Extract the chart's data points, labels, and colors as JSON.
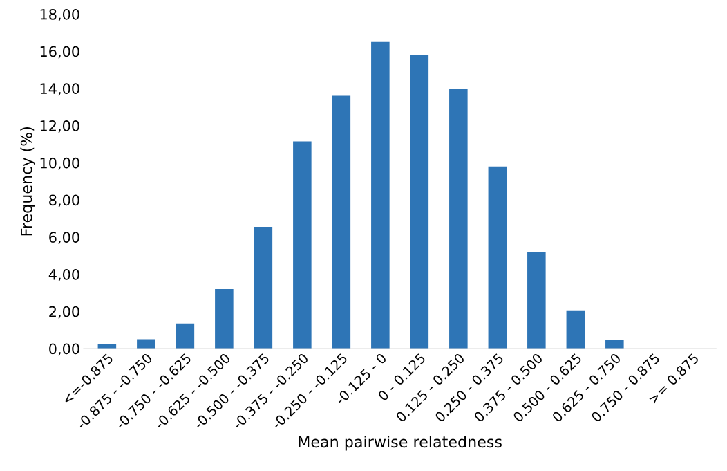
{
  "chart_data": {
    "type": "bar",
    "xlabel": "Mean pairwise relatedness",
    "ylabel": "Frequency (%)",
    "categories": [
      "<=-0.875",
      "-0.875 - -0.750",
      "-0.750 - -0.625",
      "-0.625 - -0.500",
      "-0.500 - -0.375",
      "-0.375 - -0.250",
      "-0.250 - -0.125",
      "-0.125 - 0",
      "0 - 0.125",
      "0.125 - 0.250",
      "0.250 - 0.375",
      "0.375 - 0.500",
      "0.500 - 0.625",
      "0.625 - 0.750",
      "0.750 - 0.875",
      ">= 0.875"
    ],
    "values": [
      0.25,
      0.5,
      1.35,
      3.2,
      6.55,
      11.15,
      13.6,
      16.5,
      15.8,
      14.0,
      9.8,
      5.2,
      2.05,
      0.45,
      0,
      0
    ],
    "color": "#2e75b6",
    "ylim": [
      0,
      18
    ],
    "yticks": [
      {
        "value": 0,
        "label": "0,00"
      },
      {
        "value": 2,
        "label": "2,00"
      },
      {
        "value": 4,
        "label": "4,00"
      },
      {
        "value": 6,
        "label": "6,00"
      },
      {
        "value": 8,
        "label": "8,00"
      },
      {
        "value": 10,
        "label": "10,00"
      },
      {
        "value": 12,
        "label": "12,00"
      },
      {
        "value": 14,
        "label": "14,00"
      },
      {
        "value": 16,
        "label": "16,00"
      },
      {
        "value": 18,
        "label": "18,00"
      }
    ],
    "grid": false
  }
}
